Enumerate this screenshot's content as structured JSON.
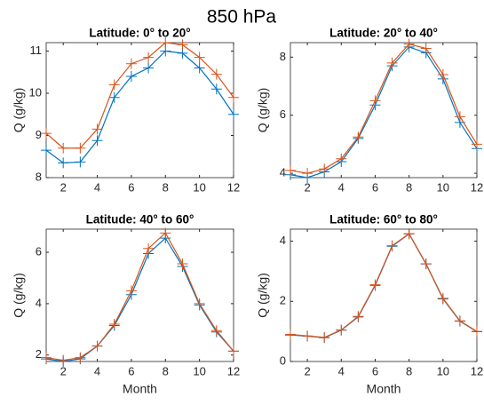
{
  "title": "850 hPa",
  "chart_data": [
    {
      "type": "line",
      "title": "Latitude: 0° to 20°",
      "ylabel": "Q (g/kg)",
      "x": [
        1,
        2,
        3,
        4,
        5,
        6,
        7,
        8,
        9,
        10,
        11,
        12
      ],
      "xlim": [
        1,
        12
      ],
      "xticks": [
        2,
        4,
        6,
        8,
        10,
        12
      ],
      "ylim": [
        8,
        11.2
      ],
      "yticks": [
        8,
        9,
        10,
        11
      ],
      "grid": false,
      "marker": "+",
      "series": [
        {
          "color": "#0072bd",
          "values": [
            8.65,
            8.35,
            8.37,
            8.88,
            9.9,
            10.4,
            10.6,
            11.0,
            10.95,
            10.6,
            10.1,
            9.5
          ]
        },
        {
          "color": "#d95319",
          "values": [
            9.05,
            8.7,
            8.7,
            9.15,
            10.2,
            10.7,
            10.85,
            11.2,
            11.15,
            10.85,
            10.45,
            9.9
          ]
        }
      ]
    },
    {
      "type": "line",
      "title": "Latitude: 20° to 40°",
      "ylabel": "Q (g/kg)",
      "x": [
        1,
        2,
        3,
        4,
        5,
        6,
        7,
        8,
        9,
        10,
        11,
        12
      ],
      "xlim": [
        1,
        12
      ],
      "xticks": [
        2,
        4,
        6,
        8,
        10,
        12
      ],
      "ylim": [
        3.85,
        8.5
      ],
      "yticks": [
        4,
        6,
        8
      ],
      "grid": false,
      "marker": "+",
      "series": [
        {
          "color": "#0072bd",
          "values": [
            3.95,
            3.85,
            4.05,
            4.4,
            5.2,
            6.35,
            7.7,
            8.35,
            8.15,
            7.25,
            5.75,
            4.85
          ]
        },
        {
          "color": "#d95319",
          "values": [
            4.1,
            4.0,
            4.15,
            4.5,
            5.25,
            6.5,
            7.8,
            8.45,
            8.3,
            7.4,
            5.95,
            5.0
          ]
        }
      ]
    },
    {
      "type": "line",
      "title": "Latitude: 40° to 60°",
      "ylabel": "Q (g/kg)",
      "xlabel": "Month",
      "x": [
        1,
        2,
        3,
        4,
        5,
        6,
        7,
        8,
        9,
        10,
        11,
        12
      ],
      "xlim": [
        1,
        12
      ],
      "xticks": [
        2,
        4,
        6,
        8,
        10,
        12
      ],
      "ylim": [
        1.75,
        6.9
      ],
      "yticks": [
        2,
        4,
        6
      ],
      "grid": false,
      "marker": "+",
      "series": [
        {
          "color": "#0072bd",
          "values": [
            1.85,
            1.75,
            1.85,
            2.35,
            3.15,
            4.35,
            5.95,
            6.55,
            5.45,
            3.95,
            2.9,
            2.15
          ]
        },
        {
          "color": "#d95319",
          "values": [
            1.9,
            1.8,
            1.9,
            2.35,
            3.2,
            4.5,
            6.15,
            6.75,
            5.55,
            4.0,
            2.95,
            2.15
          ]
        }
      ]
    },
    {
      "type": "line",
      "title": "Latitude: 60° to 80°",
      "ylabel": "Q (g/kg)",
      "xlabel": "Month",
      "x": [
        1,
        2,
        3,
        4,
        5,
        6,
        7,
        8,
        9,
        10,
        11,
        12
      ],
      "xlim": [
        1,
        12
      ],
      "xticks": [
        2,
        4,
        6,
        8,
        10,
        12
      ],
      "ylim": [
        0,
        4.4
      ],
      "yticks": [
        0,
        2,
        4
      ],
      "grid": false,
      "marker": "+",
      "series": [
        {
          "color": "#0072bd",
          "values": [
            0.88,
            0.84,
            0.79,
            1.04,
            1.48,
            2.53,
            3.83,
            4.24,
            3.24,
            2.08,
            1.34,
            0.99
          ]
        },
        {
          "color": "#d95319",
          "values": [
            0.9,
            0.85,
            0.8,
            1.05,
            1.5,
            2.55,
            3.85,
            4.25,
            3.25,
            2.1,
            1.35,
            1.0
          ]
        }
      ]
    }
  ]
}
